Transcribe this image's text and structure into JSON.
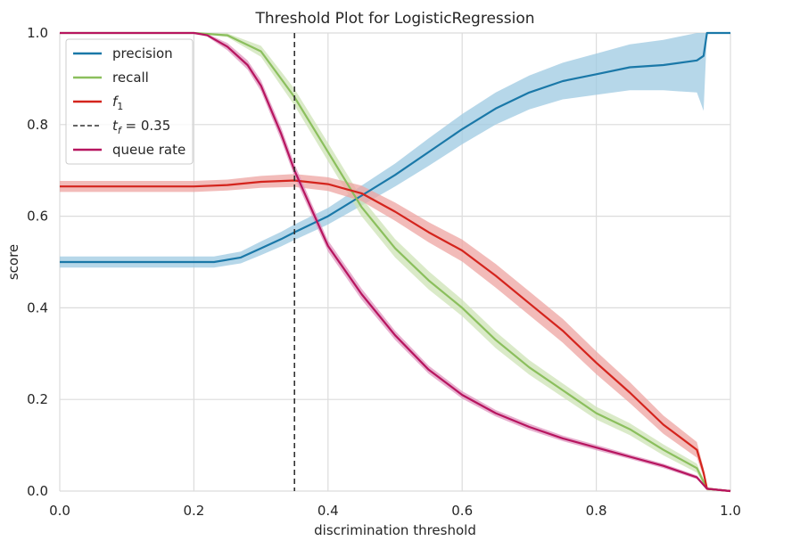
{
  "chart_data": {
    "type": "line",
    "title": "Threshold Plot for LogisticRegression",
    "xlabel": "discrimination threshold",
    "ylabel": "score",
    "xlim": [
      0.0,
      1.0
    ],
    "ylim": [
      0.0,
      1.0
    ],
    "xticks": [
      "0.0",
      "0.2",
      "0.4",
      "0.6",
      "0.8",
      "1.0"
    ],
    "yticks": [
      "0.0",
      "0.2",
      "0.4",
      "0.6",
      "0.8",
      "1.0"
    ],
    "grid": true,
    "legend_position": "top-left",
    "threshold": {
      "label": "t_f = 0.35",
      "x": 0.35,
      "color": "#333333"
    },
    "series": [
      {
        "name": "precision",
        "color": "#1a78a8",
        "band_color": "#9ecae1",
        "points": [
          [
            0.0,
            0.5
          ],
          [
            0.1,
            0.5
          ],
          [
            0.2,
            0.5
          ],
          [
            0.23,
            0.5
          ],
          [
            0.27,
            0.51
          ],
          [
            0.3,
            0.53
          ],
          [
            0.33,
            0.55
          ],
          [
            0.35,
            0.565
          ],
          [
            0.4,
            0.6
          ],
          [
            0.45,
            0.645
          ],
          [
            0.5,
            0.69
          ],
          [
            0.55,
            0.74
          ],
          [
            0.6,
            0.79
          ],
          [
            0.65,
            0.835
          ],
          [
            0.7,
            0.87
          ],
          [
            0.75,
            0.895
          ],
          [
            0.8,
            0.91
          ],
          [
            0.85,
            0.925
          ],
          [
            0.9,
            0.93
          ],
          [
            0.95,
            0.94
          ],
          [
            0.96,
            0.95
          ],
          [
            0.965,
            1.0
          ],
          [
            1.0,
            1.0
          ]
        ],
        "band": [
          0.012,
          0.012,
          0.012,
          0.012,
          0.013,
          0.015,
          0.016,
          0.017,
          0.018,
          0.022,
          0.025,
          0.03,
          0.033,
          0.035,
          0.037,
          0.04,
          0.045,
          0.05,
          0.055,
          0.07,
          0.12,
          0.0,
          0.0
        ]
      },
      {
        "name": "recall",
        "color": "#8bbf5d",
        "band_color": "#cde3b5",
        "points": [
          [
            0.0,
            1.0
          ],
          [
            0.2,
            1.0
          ],
          [
            0.25,
            0.995
          ],
          [
            0.3,
            0.96
          ],
          [
            0.33,
            0.9
          ],
          [
            0.35,
            0.86
          ],
          [
            0.4,
            0.74
          ],
          [
            0.45,
            0.62
          ],
          [
            0.5,
            0.53
          ],
          [
            0.55,
            0.46
          ],
          [
            0.6,
            0.4
          ],
          [
            0.65,
            0.33
          ],
          [
            0.7,
            0.27
          ],
          [
            0.75,
            0.22
          ],
          [
            0.8,
            0.17
          ],
          [
            0.85,
            0.135
          ],
          [
            0.9,
            0.09
          ],
          [
            0.95,
            0.05
          ],
          [
            0.965,
            0.005
          ],
          [
            1.0,
            0.0
          ]
        ],
        "band": [
          0.0,
          0.0,
          0.004,
          0.012,
          0.016,
          0.018,
          0.02,
          0.02,
          0.02,
          0.02,
          0.018,
          0.018,
          0.016,
          0.015,
          0.014,
          0.013,
          0.012,
          0.01,
          0.004,
          0.0
        ]
      },
      {
        "name": "f_1",
        "color": "#d4241d",
        "band_color": "#eea4a2",
        "points": [
          [
            0.0,
            0.665
          ],
          [
            0.1,
            0.665
          ],
          [
            0.2,
            0.665
          ],
          [
            0.25,
            0.668
          ],
          [
            0.3,
            0.675
          ],
          [
            0.35,
            0.678
          ],
          [
            0.4,
            0.67
          ],
          [
            0.45,
            0.65
          ],
          [
            0.5,
            0.61
          ],
          [
            0.55,
            0.565
          ],
          [
            0.6,
            0.525
          ],
          [
            0.65,
            0.47
          ],
          [
            0.7,
            0.41
          ],
          [
            0.75,
            0.35
          ],
          [
            0.8,
            0.28
          ],
          [
            0.85,
            0.215
          ],
          [
            0.9,
            0.145
          ],
          [
            0.95,
            0.09
          ],
          [
            0.96,
            0.04
          ],
          [
            0.965,
            0.005
          ],
          [
            1.0,
            0.0
          ]
        ],
        "band": [
          0.012,
          0.012,
          0.012,
          0.012,
          0.013,
          0.014,
          0.015,
          0.017,
          0.02,
          0.022,
          0.024,
          0.026,
          0.026,
          0.026,
          0.025,
          0.023,
          0.02,
          0.017,
          0.01,
          0.002,
          0.0
        ]
      },
      {
        "name": "queue rate",
        "color": "#b7155f",
        "band_color": "#df96bf",
        "points": [
          [
            0.0,
            1.0
          ],
          [
            0.2,
            1.0
          ],
          [
            0.22,
            0.995
          ],
          [
            0.25,
            0.97
          ],
          [
            0.28,
            0.93
          ],
          [
            0.3,
            0.885
          ],
          [
            0.33,
            0.78
          ],
          [
            0.35,
            0.7
          ],
          [
            0.38,
            0.6
          ],
          [
            0.4,
            0.535
          ],
          [
            0.45,
            0.43
          ],
          [
            0.5,
            0.34
          ],
          [
            0.55,
            0.265
          ],
          [
            0.6,
            0.21
          ],
          [
            0.65,
            0.17
          ],
          [
            0.7,
            0.14
          ],
          [
            0.75,
            0.115
          ],
          [
            0.8,
            0.095
          ],
          [
            0.85,
            0.075
          ],
          [
            0.9,
            0.055
          ],
          [
            0.95,
            0.03
          ],
          [
            0.965,
            0.005
          ],
          [
            1.0,
            0.0
          ]
        ],
        "band": [
          0.0,
          0.0,
          0.003,
          0.008,
          0.01,
          0.012,
          0.014,
          0.014,
          0.013,
          0.012,
          0.012,
          0.01,
          0.009,
          0.008,
          0.007,
          0.007,
          0.006,
          0.006,
          0.005,
          0.005,
          0.004,
          0.001,
          0.0
        ]
      }
    ]
  }
}
